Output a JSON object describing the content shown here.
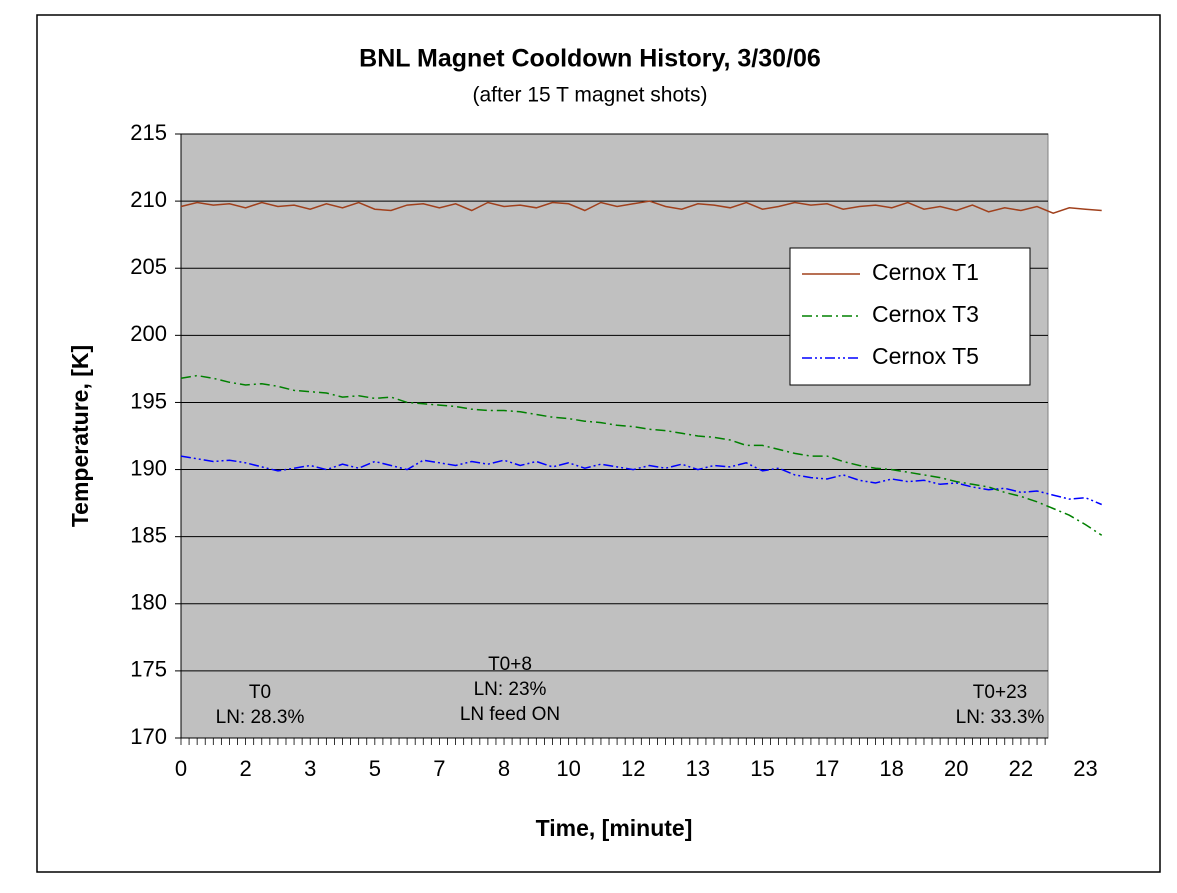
{
  "chart_data": {
    "type": "line",
    "title": "BNL Magnet Cooldown History, 3/30/06",
    "subtitle": "(after 15 T magnet shots)",
    "x_label": "Time, [minute]",
    "y_label": "Temperature, [K]",
    "categories": [
      "0",
      null,
      null,
      null,
      "2",
      null,
      null,
      null,
      "3",
      null,
      null,
      null,
      "5",
      null,
      null,
      null,
      "7",
      null,
      null,
      null,
      "8",
      null,
      null,
      null,
      "10",
      null,
      null,
      null,
      "12",
      null,
      null,
      null,
      "13",
      null,
      null,
      null,
      "15",
      null,
      null,
      null,
      "17",
      null,
      null,
      null,
      "18",
      null,
      null,
      null,
      "20",
      null,
      null,
      null,
      "22",
      null,
      null,
      null,
      "23",
      null
    ],
    "series": [
      {
        "name": "Cernox T1",
        "color": "#a0401c",
        "dash": "solid",
        "values": [
          209.6,
          209.9,
          209.7,
          209.8,
          209.5,
          209.9,
          209.6,
          209.7,
          209.4,
          209.8,
          209.5,
          209.9,
          209.4,
          209.3,
          209.7,
          209.8,
          209.5,
          209.8,
          209.3,
          209.9,
          209.6,
          209.7,
          209.5,
          209.9,
          209.8,
          209.3,
          209.9,
          209.6,
          209.8,
          210.0,
          209.6,
          209.4,
          209.8,
          209.7,
          209.5,
          209.9,
          209.4,
          209.6,
          209.9,
          209.7,
          209.8,
          209.4,
          209.6,
          209.7,
          209.5,
          209.9,
          209.4,
          209.6,
          209.3,
          209.7,
          209.2,
          209.5,
          209.3,
          209.6,
          209.1,
          209.5,
          209.4,
          209.3
        ]
      },
      {
        "name": "Cernox T3",
        "color": "#008000",
        "dash": "dashdot",
        "values": [
          196.8,
          197.0,
          196.8,
          196.5,
          196.3,
          196.4,
          196.2,
          195.9,
          195.8,
          195.7,
          195.4,
          195.5,
          195.3,
          195.4,
          195.0,
          194.9,
          194.8,
          194.7,
          194.5,
          194.4,
          194.4,
          194.3,
          194.1,
          193.9,
          193.8,
          193.6,
          193.5,
          193.3,
          193.2,
          193.0,
          192.9,
          192.7,
          192.5,
          192.4,
          192.2,
          191.8,
          191.8,
          191.5,
          191.2,
          191.0,
          191.0,
          190.6,
          190.3,
          190.1,
          190.0,
          189.8,
          189.6,
          189.4,
          189.1,
          188.9,
          188.7,
          188.3,
          188.0,
          187.6,
          187.1,
          186.6,
          185.9,
          185.1
        ]
      },
      {
        "name": "Cernox T5",
        "color": "#0000ff",
        "dash": "dashdotdot",
        "values": [
          191.0,
          190.8,
          190.6,
          190.7,
          190.5,
          190.2,
          189.9,
          190.1,
          190.3,
          190.0,
          190.4,
          190.1,
          190.6,
          190.3,
          190.0,
          190.7,
          190.5,
          190.3,
          190.6,
          190.4,
          190.7,
          190.3,
          190.6,
          190.2,
          190.5,
          190.1,
          190.4,
          190.2,
          190.0,
          190.3,
          190.1,
          190.4,
          190.0,
          190.3,
          190.2,
          190.5,
          189.9,
          190.1,
          189.6,
          189.4,
          189.3,
          189.6,
          189.2,
          189.0,
          189.3,
          189.1,
          189.2,
          188.9,
          189.0,
          188.7,
          188.5,
          188.6,
          188.3,
          188.4,
          188.1,
          187.8,
          187.9,
          187.4
        ]
      }
    ],
    "annotations": [
      [
        "T0",
        "LN: 28.3%"
      ],
      [
        "T0+8",
        "LN: 23%",
        "LN feed ON"
      ],
      [
        "T0+23",
        "LN: 33.3%"
      ]
    ],
    "ylim": [
      170,
      215
    ],
    "yticks": [
      170,
      175,
      180,
      185,
      190,
      195,
      200,
      205,
      210,
      215
    ],
    "grid": true,
    "legend": "right"
  }
}
